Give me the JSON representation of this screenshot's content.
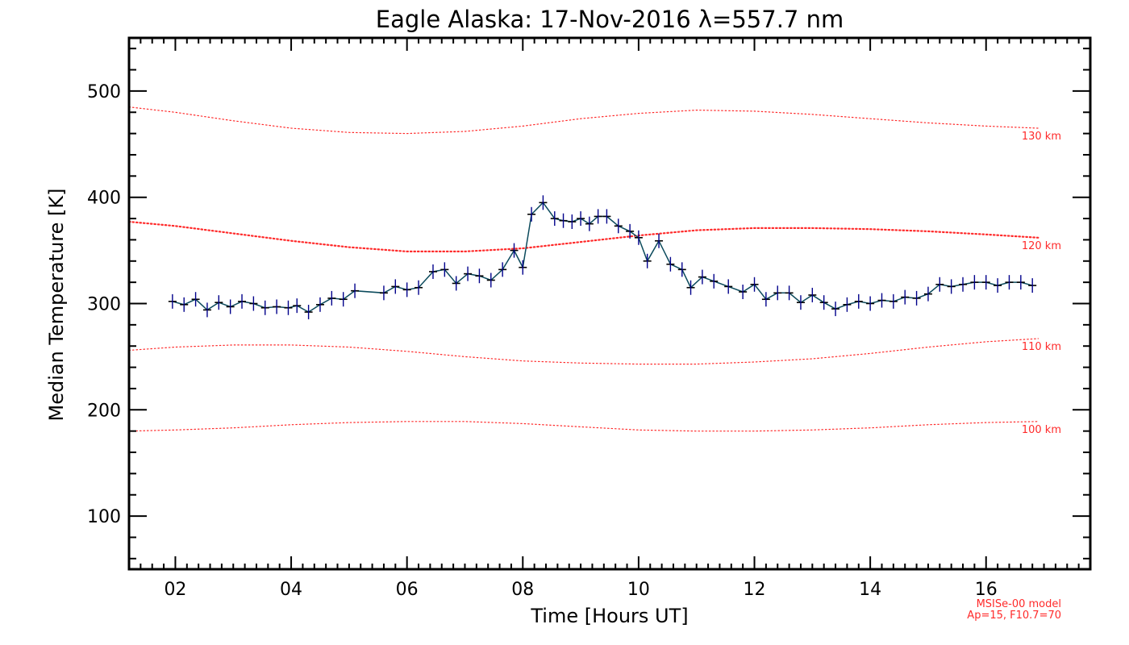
{
  "chart_data": {
    "type": "line",
    "title": "Eagle Alaska: 17-Nov-2016 λ=557.7 nm",
    "xlabel": "Time [Hours UT]",
    "ylabel": "Median Temperature [K]",
    "xlim": [
      1.2,
      17.8
    ],
    "ylim": [
      50,
      550
    ],
    "x_tick_values": [
      2,
      4,
      6,
      8,
      10,
      12,
      14,
      16
    ],
    "x_tick_labels": [
      "02",
      "04",
      "06",
      "08",
      "10",
      "12",
      "14",
      "16"
    ],
    "y_tick_values": [
      100,
      200,
      300,
      400,
      500
    ],
    "y_tick_labels": [
      "100",
      "200",
      "300",
      "400",
      "500"
    ],
    "series": [
      {
        "color": "#0b4a5c",
        "marker_color": "#00008b",
        "x": [
          1.95,
          2.15,
          2.35,
          2.55,
          2.75,
          2.95,
          3.15,
          3.35,
          3.55,
          3.75,
          3.95,
          4.1,
          4.3,
          4.5,
          4.7,
          4.9,
          5.1,
          5.6,
          5.8,
          6.0,
          6.2,
          6.45,
          6.65,
          6.85,
          7.05,
          7.25,
          7.45,
          7.65,
          7.85,
          8.0,
          8.15,
          8.35,
          8.55,
          8.7,
          8.85,
          9.0,
          9.15,
          9.3,
          9.45,
          9.65,
          9.85,
          10.0,
          10.15,
          10.35,
          10.55,
          10.75,
          10.9,
          11.1,
          11.3,
          11.55,
          11.8,
          12.0,
          12.2,
          12.4,
          12.6,
          12.8,
          13.0,
          13.2,
          13.4,
          13.6,
          13.8,
          14.0,
          14.2,
          14.4,
          14.6,
          14.8,
          15.0,
          15.2,
          15.4,
          15.6,
          15.8,
          16.0,
          16.2,
          16.4,
          16.6,
          16.8
        ],
        "values": [
          302,
          299,
          304,
          294,
          301,
          297,
          302,
          300,
          296,
          297,
          296,
          298,
          292,
          299,
          305,
          304,
          312,
          310,
          316,
          313,
          315,
          330,
          332,
          319,
          328,
          326,
          322,
          332,
          350,
          334,
          384,
          395,
          380,
          378,
          377,
          380,
          375,
          382,
          382,
          373,
          368,
          362,
          340,
          359,
          337,
          332,
          315,
          325,
          321,
          316,
          311,
          318,
          304,
          310,
          310,
          301,
          308,
          301,
          295,
          299,
          302,
          300,
          303,
          302,
          306,
          305,
          309,
          318,
          316,
          318,
          320,
          320,
          317,
          320,
          320,
          317
        ]
      }
    ],
    "model_curves": [
      {
        "label": "130 km",
        "x": [
          1.2,
          2,
          3,
          4,
          5,
          6,
          7,
          8,
          9,
          10,
          11,
          12,
          13,
          14,
          15,
          16,
          16.9
        ],
        "values": [
          485,
          480,
          472,
          465,
          461,
          460,
          462,
          467,
          474,
          479,
          482,
          481,
          478,
          474,
          470,
          467,
          465
        ]
      },
      {
        "label": "120 km",
        "x": [
          1.2,
          2,
          3,
          4,
          5,
          6,
          7,
          8,
          9,
          10,
          11,
          12,
          13,
          14,
          15,
          16,
          16.9
        ],
        "values": [
          377,
          373,
          366,
          359,
          353,
          349,
          349,
          352,
          358,
          364,
          369,
          371,
          371,
          370,
          368,
          365,
          362
        ]
      },
      {
        "label": "110 km",
        "x": [
          1.2,
          2,
          3,
          4,
          5,
          6,
          7,
          8,
          9,
          10,
          11,
          12,
          13,
          14,
          15,
          16,
          16.9
        ],
        "values": [
          256,
          259,
          261,
          261,
          259,
          255,
          250,
          246,
          244,
          243,
          243,
          245,
          248,
          253,
          259,
          264,
          267
        ]
      },
      {
        "label": "100 km",
        "x": [
          1.2,
          2,
          3,
          4,
          5,
          6,
          7,
          8,
          9,
          10,
          11,
          12,
          13,
          14,
          15,
          16,
          16.9
        ],
        "values": [
          180,
          181,
          183,
          186,
          188,
          189,
          189,
          187,
          184,
          181,
          180,
          180,
          181,
          183,
          186,
          188,
          189
        ]
      }
    ],
    "model_color": "#ff2a2a",
    "footnote": [
      "MSISe-00 model",
      "Ap=15, F10.7=70"
    ]
  }
}
